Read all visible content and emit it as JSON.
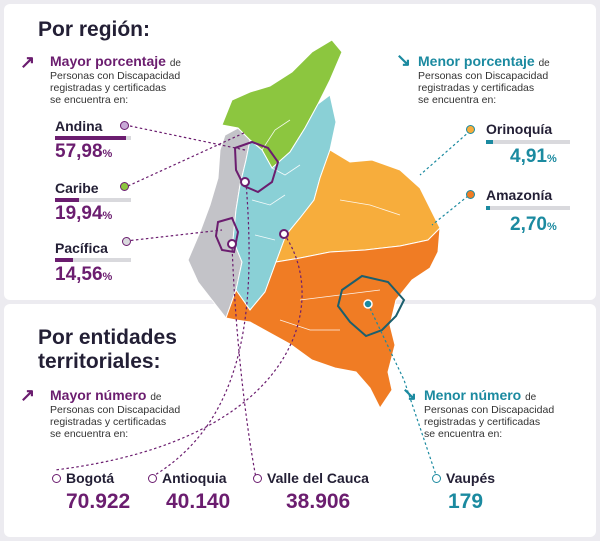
{
  "colors": {
    "purple": "#6b1d6f",
    "teal": "#1b8aa0",
    "andina": "#8ad0d6",
    "caribe": "#8cc63f",
    "pacifica": "#c3c3c8",
    "orinoquia": "#f7ad3c",
    "amazonia": "#f07c24"
  },
  "region": {
    "title": "Por región:",
    "mayor": {
      "lead": "Mayor porcentaje",
      "lead_rest": "de",
      "desc": [
        "Personas con Discapacidad",
        "registradas y certificadas",
        "se encuentra en:"
      ]
    },
    "menor": {
      "lead": "Menor porcentaje",
      "lead_rest": "de",
      "desc": [
        "Personas con Discapacidad",
        "registradas y certificadas",
        "se encuentra en:"
      ]
    },
    "items": [
      {
        "name": "Andina",
        "value": "57,98",
        "unit": "%",
        "share": 57.98
      },
      {
        "name": "Caribe",
        "value": "19,94",
        "unit": "%",
        "share": 19.94
      },
      {
        "name": "Pacífica",
        "value": "14,56",
        "unit": "%",
        "share": 14.56
      },
      {
        "name": "Orinoquía",
        "value": "4,91",
        "unit": "%",
        "share": 4.91
      },
      {
        "name": "Amazonía",
        "value": "2,70",
        "unit": "%",
        "share": 2.7
      }
    ]
  },
  "entities": {
    "title_line1": "Por entidades",
    "title_line2": "territoriales:",
    "mayor": {
      "lead": "Mayor número",
      "lead_rest": "de",
      "desc": [
        "Personas con Discapacidad",
        "registradas y certificadas",
        "se encuentra en:"
      ]
    },
    "menor": {
      "lead": "Menor número",
      "lead_rest": "de",
      "desc": [
        "Personas con Discapacidad",
        "registradas y certificadas",
        "se encuentra en:"
      ]
    },
    "items": [
      {
        "name": "Bogotá",
        "value": "70.922"
      },
      {
        "name": "Antioquia",
        "value": "40.140"
      },
      {
        "name": "Valle del Cauca",
        "value": "38.906"
      },
      {
        "name": "Vaupés",
        "value": "179"
      }
    ]
  }
}
